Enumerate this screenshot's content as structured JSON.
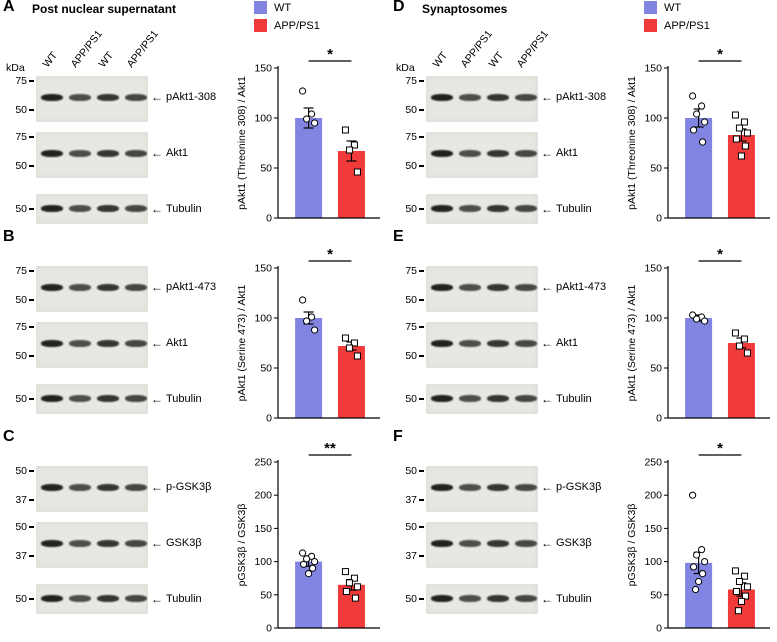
{
  "figure": {
    "legend": {
      "items": [
        {
          "label": "WT",
          "color": "#8284e2"
        },
        {
          "label": "APP/PS1",
          "color": "#f13a3a"
        }
      ]
    },
    "icons": {
      "band_arrow": "←"
    }
  },
  "chart_data": [
    {
      "type": "bar",
      "panel": "A",
      "categories": [
        "WT",
        "APP/PS1"
      ],
      "values": [
        100,
        67
      ],
      "errors": [
        10,
        10
      ],
      "points": [
        [
          127,
          104,
          99,
          95
        ],
        [
          88,
          73,
          68,
          46
        ]
      ],
      "ylabel": "pAkt1 (Threonine 308) / Akt1",
      "ylim": [
        0,
        150
      ],
      "yticks": [
        0,
        50,
        100,
        150
      ],
      "significance": "*"
    },
    {
      "type": "bar",
      "panel": "B",
      "categories": [
        "WT",
        "APP/PS1"
      ],
      "values": [
        100,
        72
      ],
      "errors": [
        6,
        4
      ],
      "points": [
        [
          118,
          101,
          97,
          88
        ],
        [
          80,
          75,
          70,
          62
        ]
      ],
      "ylabel": "pAkt1 (Serine 473) / Akt1",
      "ylim": [
        0,
        150
      ],
      "yticks": [
        0,
        50,
        100,
        150
      ],
      "significance": "*"
    },
    {
      "type": "bar",
      "panel": "C",
      "categories": [
        "WT",
        "APP/PS1"
      ],
      "values": [
        100,
        65
      ],
      "errors": [
        7,
        8
      ],
      "points": [
        [
          113,
          108,
          104,
          100,
          96,
          90,
          82
        ],
        [
          85,
          75,
          68,
          62,
          55,
          45
        ]
      ],
      "ylabel": "pGSK3β / GSK3β",
      "ylim": [
        0,
        250
      ],
      "yticks": [
        0,
        50,
        100,
        150,
        200,
        250
      ],
      "significance": "**"
    },
    {
      "type": "bar",
      "panel": "D",
      "categories": [
        "WT",
        "APP/PS1"
      ],
      "values": [
        100,
        83
      ],
      "errors": [
        9,
        6
      ],
      "points": [
        [
          122,
          112,
          104,
          96,
          88,
          76
        ],
        [
          103,
          96,
          90,
          85,
          79,
          72,
          62
        ]
      ],
      "ylabel": "pAkt1 (Threonine 308) / Akt1",
      "ylim": [
        0,
        150
      ],
      "yticks": [
        0,
        50,
        100,
        150
      ],
      "significance": "*"
    },
    {
      "type": "bar",
      "panel": "E",
      "categories": [
        "WT",
        "APP/PS1"
      ],
      "values": [
        100,
        75
      ],
      "errors": [
        3,
        5
      ],
      "points": [
        [
          103,
          101,
          99,
          97
        ],
        [
          85,
          79,
          72,
          65
        ]
      ],
      "ylabel": "pAkt1 (Serine 473) / Akt1",
      "ylim": [
        0,
        150
      ],
      "yticks": [
        0,
        50,
        100,
        150
      ],
      "significance": "*"
    },
    {
      "type": "bar",
      "panel": "F",
      "categories": [
        "WT",
        "APP/PS1"
      ],
      "values": [
        98,
        58
      ],
      "errors": [
        16,
        10
      ],
      "points": [
        [
          200,
          118,
          110,
          100,
          92,
          82,
          70,
          58
        ],
        [
          86,
          78,
          70,
          62,
          55,
          48,
          40,
          26
        ]
      ],
      "ylabel": "pGSK3β / GSK3β",
      "ylim": [
        0,
        250
      ],
      "yticks": [
        0,
        50,
        100,
        150,
        200,
        250
      ],
      "significance": "*"
    }
  ],
  "panels": [
    {
      "letter": "A",
      "section_title": "Post nuclear supernatant",
      "kda_label": "kDa",
      "lane_labels": [
        "WT",
        "APP/PS1",
        "WT",
        "APP/PS1"
      ],
      "blots": [
        {
          "markers": [
            "75",
            "50"
          ],
          "band_label": "pAkt1-308"
        },
        {
          "markers": [
            "75",
            "50"
          ],
          "band_label": "Akt1"
        },
        {
          "markers": [
            "50"
          ],
          "band_label": "Tubulin"
        }
      ],
      "chart_index": 0
    },
    {
      "letter": "B",
      "blots": [
        {
          "markers": [
            "75",
            "50"
          ],
          "band_label": "pAkt1-473"
        },
        {
          "markers": [
            "75",
            "50"
          ],
          "band_label": "Akt1"
        },
        {
          "markers": [
            "50"
          ],
          "band_label": "Tubulin"
        }
      ],
      "chart_index": 1
    },
    {
      "letter": "C",
      "blots": [
        {
          "markers": [
            "50",
            "37"
          ],
          "band_label": "p-GSK3β"
        },
        {
          "markers": [
            "50",
            "37"
          ],
          "band_label": "GSK3β"
        },
        {
          "markers": [
            "50"
          ],
          "band_label": "Tubulin"
        }
      ],
      "chart_index": 2
    },
    {
      "letter": "D",
      "section_title": "Synaptosomes",
      "kda_label": "kDa",
      "lane_labels": [
        "WT",
        "APP/PS1",
        "WT",
        "APP/PS1"
      ],
      "blots": [
        {
          "markers": [
            "75",
            "50"
          ],
          "band_label": "pAkt1-308"
        },
        {
          "markers": [
            "75",
            "50"
          ],
          "band_label": "Akt1"
        },
        {
          "markers": [
            "50"
          ],
          "band_label": "Tubulin"
        }
      ],
      "chart_index": 3
    },
    {
      "letter": "E",
      "blots": [
        {
          "markers": [
            "75",
            "50"
          ],
          "band_label": "pAkt1-473"
        },
        {
          "markers": [
            "75",
            "50"
          ],
          "band_label": "Akt1"
        },
        {
          "markers": [
            "50"
          ],
          "band_label": "Tubulin"
        }
      ],
      "chart_index": 4
    },
    {
      "letter": "F",
      "blots": [
        {
          "markers": [
            "50",
            "37"
          ],
          "band_label": "p-GSK3β"
        },
        {
          "markers": [
            "50",
            "37"
          ],
          "band_label": "GSK3β"
        },
        {
          "markers": [
            "50"
          ],
          "band_label": "Tubulin"
        }
      ],
      "chart_index": 5
    }
  ]
}
